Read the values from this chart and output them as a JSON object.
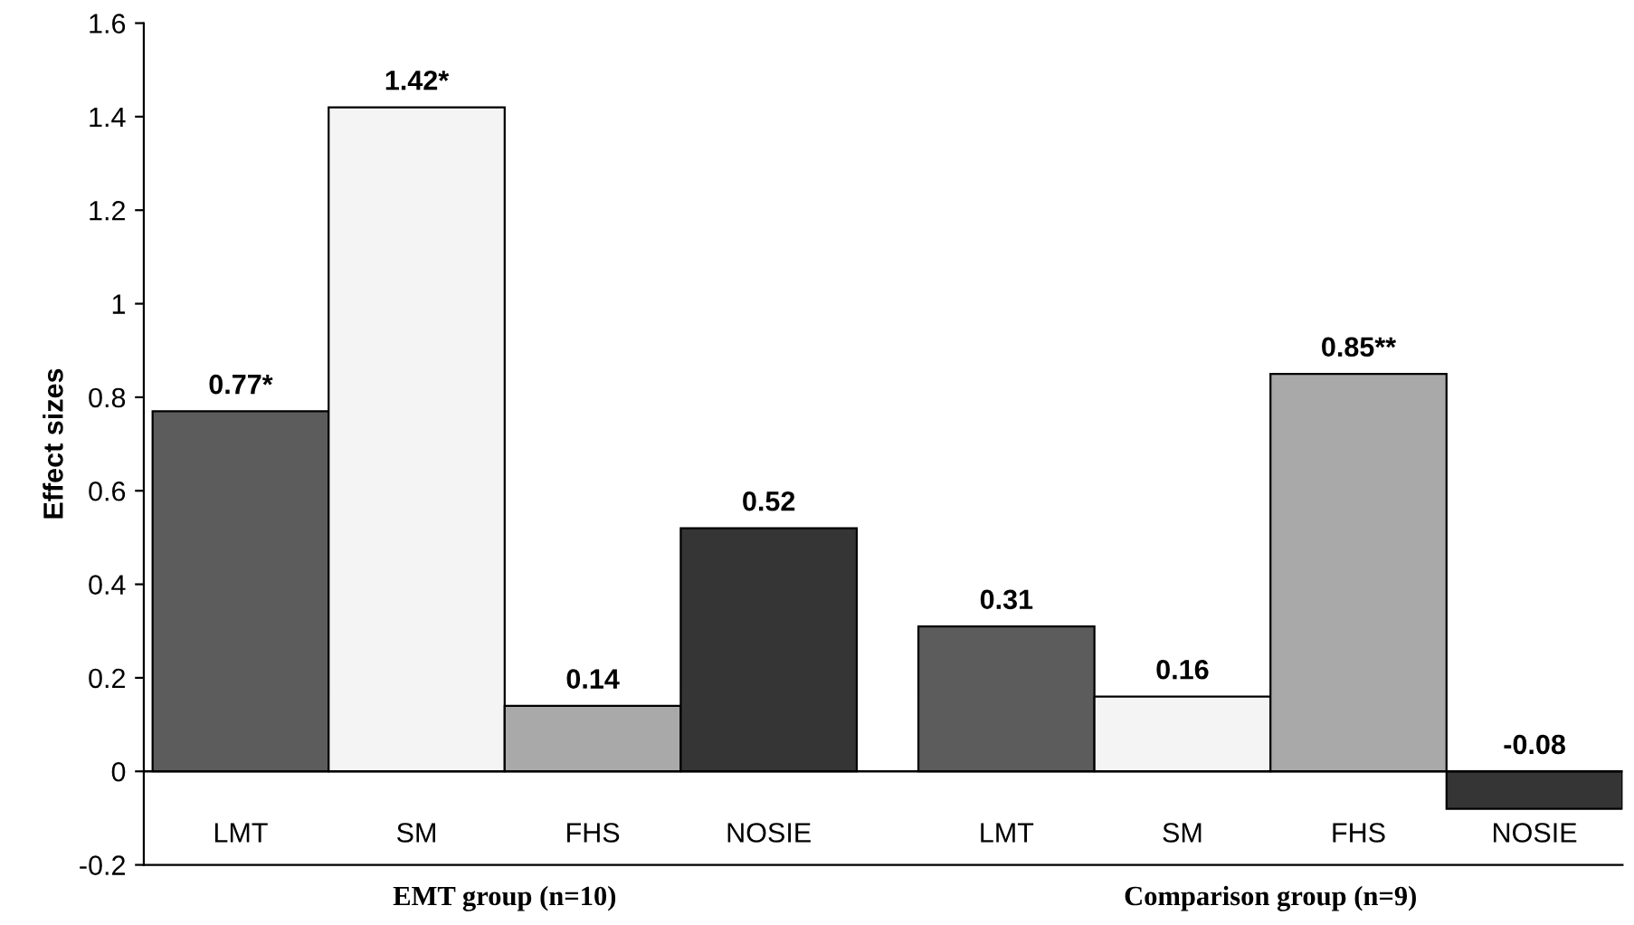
{
  "chart_data": {
    "type": "bar",
    "ylabel": "Effect sizes",
    "categories": [
      "LMT",
      "SM",
      "FHS",
      "NOSIE",
      "LMT",
      "SM",
      "FHS",
      "NOSIE"
    ],
    "values": [
      0.77,
      1.42,
      0.14,
      0.52,
      0.31,
      0.16,
      0.85,
      -0.08
    ],
    "colors": [
      "#5c5c5c",
      "#f4f4f4",
      "#a9a9a9",
      "#353535",
      "#5c5c5c",
      "#f4f4f4",
      "#a9a9a9",
      "#353535"
    ],
    "value_labels": [
      "0.77*",
      "1.42*",
      "0.14",
      "0.52",
      "0.31",
      "0.16",
      "0.85**",
      "-0.08"
    ],
    "annotations": [
      "EMT group (n=10)",
      "Comparison group (n=9)"
    ],
    "ref_lines": [
      {
        "axis": "y",
        "value": 0
      }
    ],
    "ylim": [
      -0.2,
      1.6
    ],
    "yticks": [
      -0.2,
      0,
      0.2,
      0.4,
      0.6,
      0.8,
      1,
      1.2,
      1.4,
      1.6
    ],
    "grid": false,
    "legend": false
  }
}
